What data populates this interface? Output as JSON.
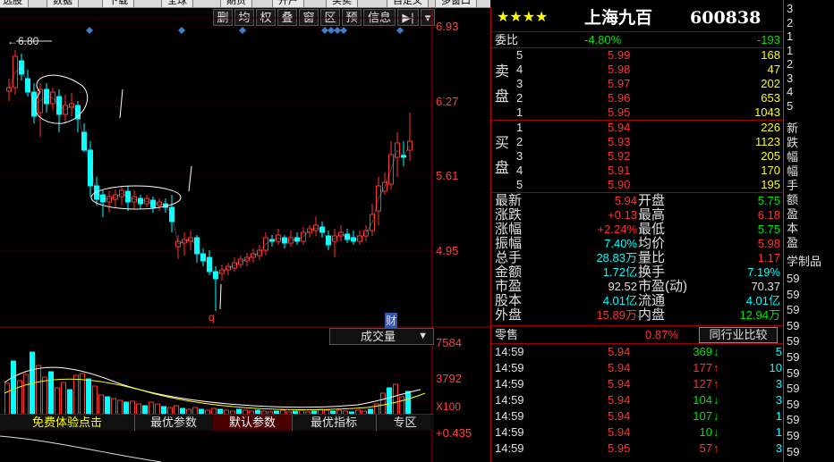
{
  "toolbar": {
    "items": [
      "选股",
      "数据",
      "下载",
      "全球",
      "期货",
      "开户",
      "买卖",
      "自定义",
      "多窗口"
    ]
  },
  "chart_tools": [
    "删",
    "均",
    "权",
    "叠",
    "窗",
    "区",
    "预",
    "信息"
  ],
  "price_chart": {
    "high_marker": "6.80",
    "y_ticks": [
      "6.93",
      "6.27",
      "5.61",
      "4.95"
    ],
    "event_markers": [
      "q",
      "财"
    ]
  },
  "volume_panel": {
    "indicator": "成交量",
    "y_ticks": [
      "7584",
      "3792",
      "X100"
    ]
  },
  "macd_panel": {
    "y_tick": "+0.435"
  },
  "tabs": [
    "免费体验点击",
    "最优参数",
    "默认参数",
    "最优指标",
    "专区"
  ],
  "quote": {
    "stars": "★★★★",
    "name": "上海九百",
    "code": "600838",
    "weibi_label": "委比",
    "weibi_pct": "-4.80%",
    "weibi_diff": "-193",
    "sell_label": [
      "卖",
      "盘"
    ],
    "buy_label": [
      "买",
      "盘"
    ],
    "sell": [
      {
        "lvl": "5",
        "price": "5.99",
        "vol": "168"
      },
      {
        "lvl": "4",
        "price": "5.98",
        "vol": "47"
      },
      {
        "lvl": "3",
        "price": "5.97",
        "vol": "202"
      },
      {
        "lvl": "2",
        "price": "5.96",
        "vol": "653"
      },
      {
        "lvl": "1",
        "price": "5.95",
        "vol": "1043"
      }
    ],
    "buy": [
      {
        "lvl": "1",
        "price": "5.94",
        "vol": "226"
      },
      {
        "lvl": "2",
        "price": "5.93",
        "vol": "1123"
      },
      {
        "lvl": "3",
        "price": "5.92",
        "vol": "205"
      },
      {
        "lvl": "4",
        "price": "5.91",
        "vol": "170"
      },
      {
        "lvl": "5",
        "price": "5.90",
        "vol": "195"
      }
    ],
    "stats": [
      {
        "l1": "最新",
        "v1": "5.94",
        "c1": "red",
        "l2": "开盘",
        "v2": "5.75",
        "c2": "green"
      },
      {
        "l1": "涨跌",
        "v1": "+0.13",
        "c1": "red",
        "l2": "最高",
        "v2": "6.18",
        "c2": "red"
      },
      {
        "l1": "涨幅",
        "v1": "+2.24%",
        "c1": "red",
        "l2": "最低",
        "v2": "5.75",
        "c2": "green"
      },
      {
        "l1": "振幅",
        "v1": "7.40%",
        "c1": "cyan",
        "l2": "均价",
        "v2": "5.98",
        "c2": "red"
      },
      {
        "l1": "总手",
        "v1": "28.83万",
        "c1": "cyan",
        "l2": "量比",
        "v2": "1.17",
        "c2": "red"
      },
      {
        "l1": "金额",
        "v1": "1.72亿",
        "c1": "cyan",
        "l2": "换手",
        "v2": "7.19%",
        "c2": "cyan"
      },
      {
        "l1": "市盈",
        "v1": "92.52",
        "c1": "white",
        "l2": "市盈(动)",
        "v2": "70.37",
        "c2": "white"
      },
      {
        "l1": "股本",
        "v1": "4.01亿",
        "c1": "cyan",
        "l2": "流通",
        "v2": "4.01亿",
        "c2": "cyan"
      },
      {
        "l1": "外盘",
        "v1": "15.89万",
        "c1": "red",
        "l2": "内盘",
        "v2": "12.94万",
        "c2": "green"
      }
    ],
    "zero_label": "零售",
    "zero_pct": "0.87%",
    "compare_btn": "同行业比较",
    "trades": [
      {
        "time": "14:59",
        "price": "5.94",
        "vol": "369",
        "dir": "down",
        "n": "5"
      },
      {
        "time": "14:59",
        "price": "5.94",
        "vol": "177",
        "dir": "up",
        "n": "10"
      },
      {
        "time": "14:59",
        "price": "5.94",
        "vol": "127",
        "dir": "up",
        "n": "3"
      },
      {
        "time": "14:59",
        "price": "5.94",
        "vol": "104",
        "dir": "down",
        "n": "3"
      },
      {
        "time": "14:59",
        "price": "5.94",
        "vol": "107",
        "dir": "down",
        "n": "1"
      },
      {
        "time": "14:59",
        "price": "5.94",
        "vol": "10",
        "dir": "down",
        "n": "1"
      },
      {
        "time": "14:59",
        "price": "5.95",
        "vol": "57",
        "dir": "up",
        "n": "3"
      }
    ]
  },
  "right_strip": {
    "top": [
      "3",
      "2",
      "1",
      "1",
      "2",
      "3",
      "4",
      "5"
    ],
    "labels": [
      "新",
      "跌",
      "幅",
      "幅",
      "手",
      "额",
      "盈",
      "本",
      "盈"
    ],
    "section": "学制品",
    "times": [
      "59",
      "59",
      "59",
      "59",
      "59",
      "59",
      "59",
      "59",
      "59",
      "59",
      "59",
      "59"
    ]
  },
  "colors": {
    "up": "#ff3232",
    "down": "#00ffff",
    "ma_white": "#ffffff",
    "ma_yellow": "#ffff00",
    "grid_red": "#a00000"
  }
}
